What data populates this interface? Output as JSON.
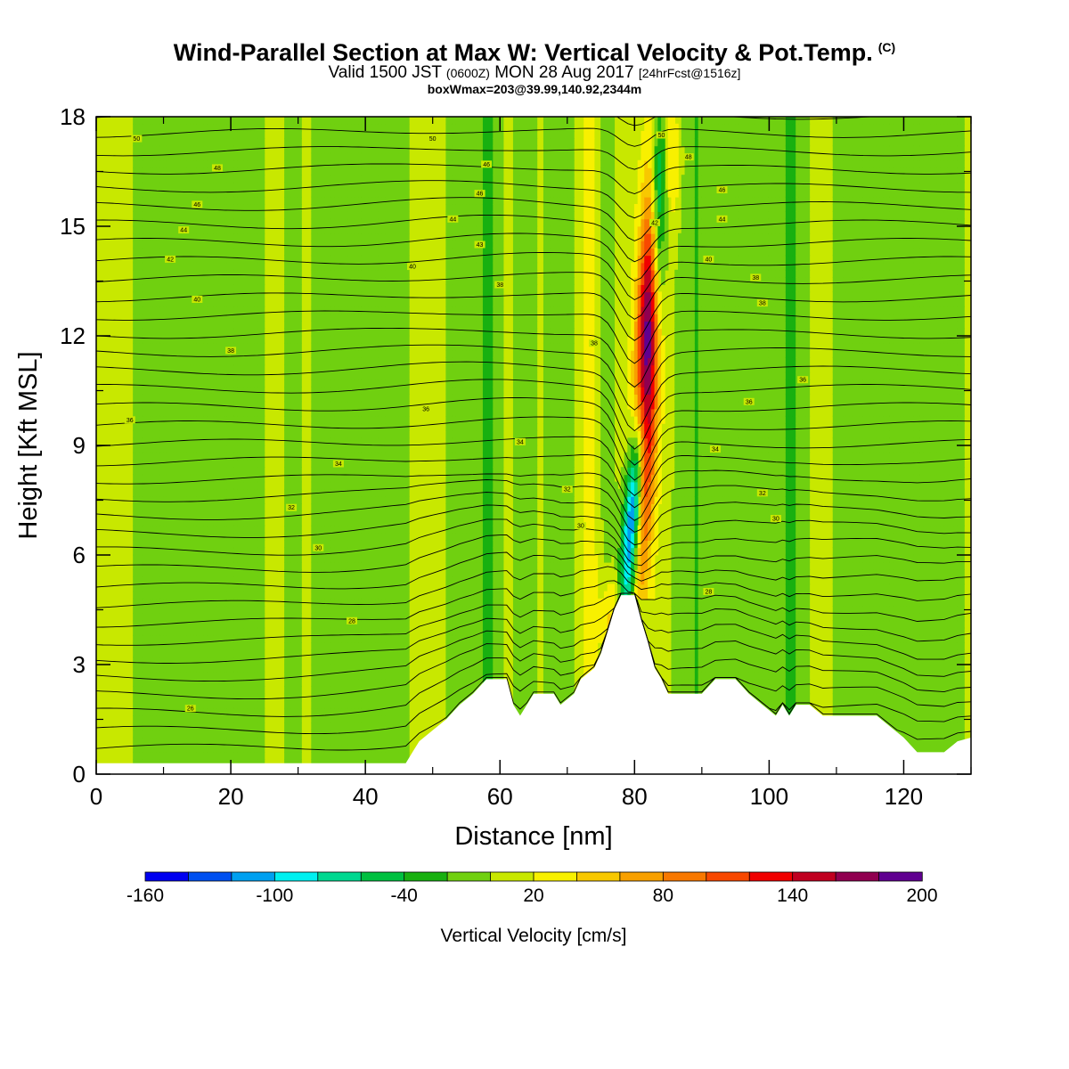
{
  "header": {
    "title": "Wind-Parallel Section at Max W: Vertical Velocity & Pot.Temp.",
    "title_mark": "(C)",
    "valid_prefix": "Valid 1500 JST",
    "valid_utc": "(0600Z)",
    "valid_date": "MON 28 Aug 2017",
    "forecast": "[24hrFcst@1516z]",
    "box_info": "boxWmax=203@39.99,140.92,2344m"
  },
  "chart_data": {
    "type": "heatmap",
    "xlabel": "Distance [nm]",
    "ylabel": "Height [Kft MSL]",
    "xlim": [
      0,
      130
    ],
    "ylim": [
      0,
      18
    ],
    "xticks": [
      0,
      20,
      40,
      60,
      80,
      100,
      120
    ],
    "yticks": [
      0,
      3,
      6,
      9,
      12,
      15,
      18
    ],
    "colorbar": {
      "label": "Vertical Velocity [cm/s]",
      "min": -160,
      "max": 200,
      "step": 20,
      "tick_labels": [
        -160,
        -100,
        -40,
        20,
        80,
        140,
        200
      ],
      "colors": [
        "#0000f0",
        "#0050f0",
        "#00a0f0",
        "#00f0f0",
        "#00d890",
        "#00c040",
        "#18b010",
        "#70d010",
        "#c8e800",
        "#f8f000",
        "#f8c800",
        "#f8a000",
        "#f87800",
        "#f84800",
        "#f00000",
        "#c00020",
        "#900050",
        "#600090"
      ]
    },
    "background_value_cm_s": 10,
    "terrain_kft": [
      [
        0,
        0.3
      ],
      [
        46,
        0.3
      ],
      [
        47,
        0.6
      ],
      [
        48,
        0.9
      ],
      [
        50,
        1.2
      ],
      [
        52,
        1.5
      ],
      [
        54,
        1.9
      ],
      [
        56,
        2.2
      ],
      [
        58,
        2.6
      ],
      [
        61,
        2.6
      ],
      [
        62,
        1.9
      ],
      [
        63,
        1.6
      ],
      [
        64,
        1.9
      ],
      [
        65,
        2.2
      ],
      [
        68,
        2.2
      ],
      [
        69,
        1.9
      ],
      [
        71,
        2.2
      ],
      [
        72,
        2.6
      ],
      [
        74,
        2.9
      ],
      [
        75,
        3.3
      ],
      [
        76,
        3.9
      ],
      [
        77,
        4.5
      ],
      [
        78,
        4.9
      ],
      [
        80,
        4.9
      ],
      [
        81,
        4.2
      ],
      [
        82,
        3.6
      ],
      [
        83,
        2.9
      ],
      [
        84,
        2.6
      ],
      [
        85,
        2.2
      ],
      [
        90,
        2.2
      ],
      [
        92,
        2.6
      ],
      [
        95,
        2.6
      ],
      [
        97,
        2.2
      ],
      [
        99,
        1.9
      ],
      [
        101,
        1.6
      ],
      [
        102,
        1.9
      ],
      [
        103,
        1.6
      ],
      [
        104,
        1.9
      ],
      [
        106,
        1.9
      ],
      [
        108,
        1.6
      ],
      [
        116,
        1.6
      ],
      [
        118,
        1.3
      ],
      [
        120,
        1.0
      ],
      [
        122,
        0.6
      ],
      [
        126,
        0.6
      ],
      [
        128,
        0.9
      ],
      [
        130,
        1.0
      ]
    ],
    "isentrope_labels": [
      {
        "x": 6,
        "y": 17.4,
        "text": "50"
      },
      {
        "x": 50,
        "y": 17.4,
        "text": "50"
      },
      {
        "x": 18,
        "y": 16.6,
        "text": "48"
      },
      {
        "x": 58,
        "y": 16.7,
        "text": "46"
      },
      {
        "x": 15,
        "y": 15.6,
        "text": "46"
      },
      {
        "x": 57,
        "y": 15.9,
        "text": "46"
      },
      {
        "x": 13,
        "y": 14.9,
        "text": "44"
      },
      {
        "x": 53,
        "y": 15.2,
        "text": "44"
      },
      {
        "x": 57,
        "y": 14.5,
        "text": "43"
      },
      {
        "x": 11,
        "y": 14.1,
        "text": "42"
      },
      {
        "x": 47,
        "y": 13.9,
        "text": "40"
      },
      {
        "x": 15,
        "y": 13.0,
        "text": "40"
      },
      {
        "x": 60,
        "y": 13.4,
        "text": "38"
      },
      {
        "x": 20,
        "y": 11.6,
        "text": "38"
      },
      {
        "x": 74,
        "y": 11.8,
        "text": "38"
      },
      {
        "x": 5,
        "y": 9.7,
        "text": "36"
      },
      {
        "x": 49,
        "y": 10.0,
        "text": "36"
      },
      {
        "x": 63,
        "y": 9.1,
        "text": "34"
      },
      {
        "x": 36,
        "y": 8.5,
        "text": "34"
      },
      {
        "x": 70,
        "y": 7.8,
        "text": "32"
      },
      {
        "x": 29,
        "y": 7.3,
        "text": "32"
      },
      {
        "x": 72,
        "y": 6.8,
        "text": "30"
      },
      {
        "x": 33,
        "y": 6.2,
        "text": "30"
      },
      {
        "x": 38,
        "y": 4.2,
        "text": "28"
      },
      {
        "x": 14,
        "y": 1.8,
        "text": "26"
      },
      {
        "x": 84,
        "y": 17.5,
        "text": "50"
      },
      {
        "x": 88,
        "y": 16.9,
        "text": "48"
      },
      {
        "x": 93,
        "y": 16.0,
        "text": "46"
      },
      {
        "x": 93,
        "y": 15.2,
        "text": "44"
      },
      {
        "x": 83,
        "y": 15.1,
        "text": "42"
      },
      {
        "x": 91,
        "y": 14.1,
        "text": "40"
      },
      {
        "x": 98,
        "y": 13.6,
        "text": "38"
      },
      {
        "x": 99,
        "y": 12.9,
        "text": "38"
      },
      {
        "x": 105,
        "y": 10.8,
        "text": "36"
      },
      {
        "x": 97,
        "y": 10.2,
        "text": "36"
      },
      {
        "x": 92,
        "y": 8.9,
        "text": "34"
      },
      {
        "x": 99,
        "y": 7.7,
        "text": "32"
      },
      {
        "x": 101,
        "y": 7.0,
        "text": "30"
      },
      {
        "x": 91,
        "y": 5.0,
        "text": "28"
      }
    ]
  }
}
